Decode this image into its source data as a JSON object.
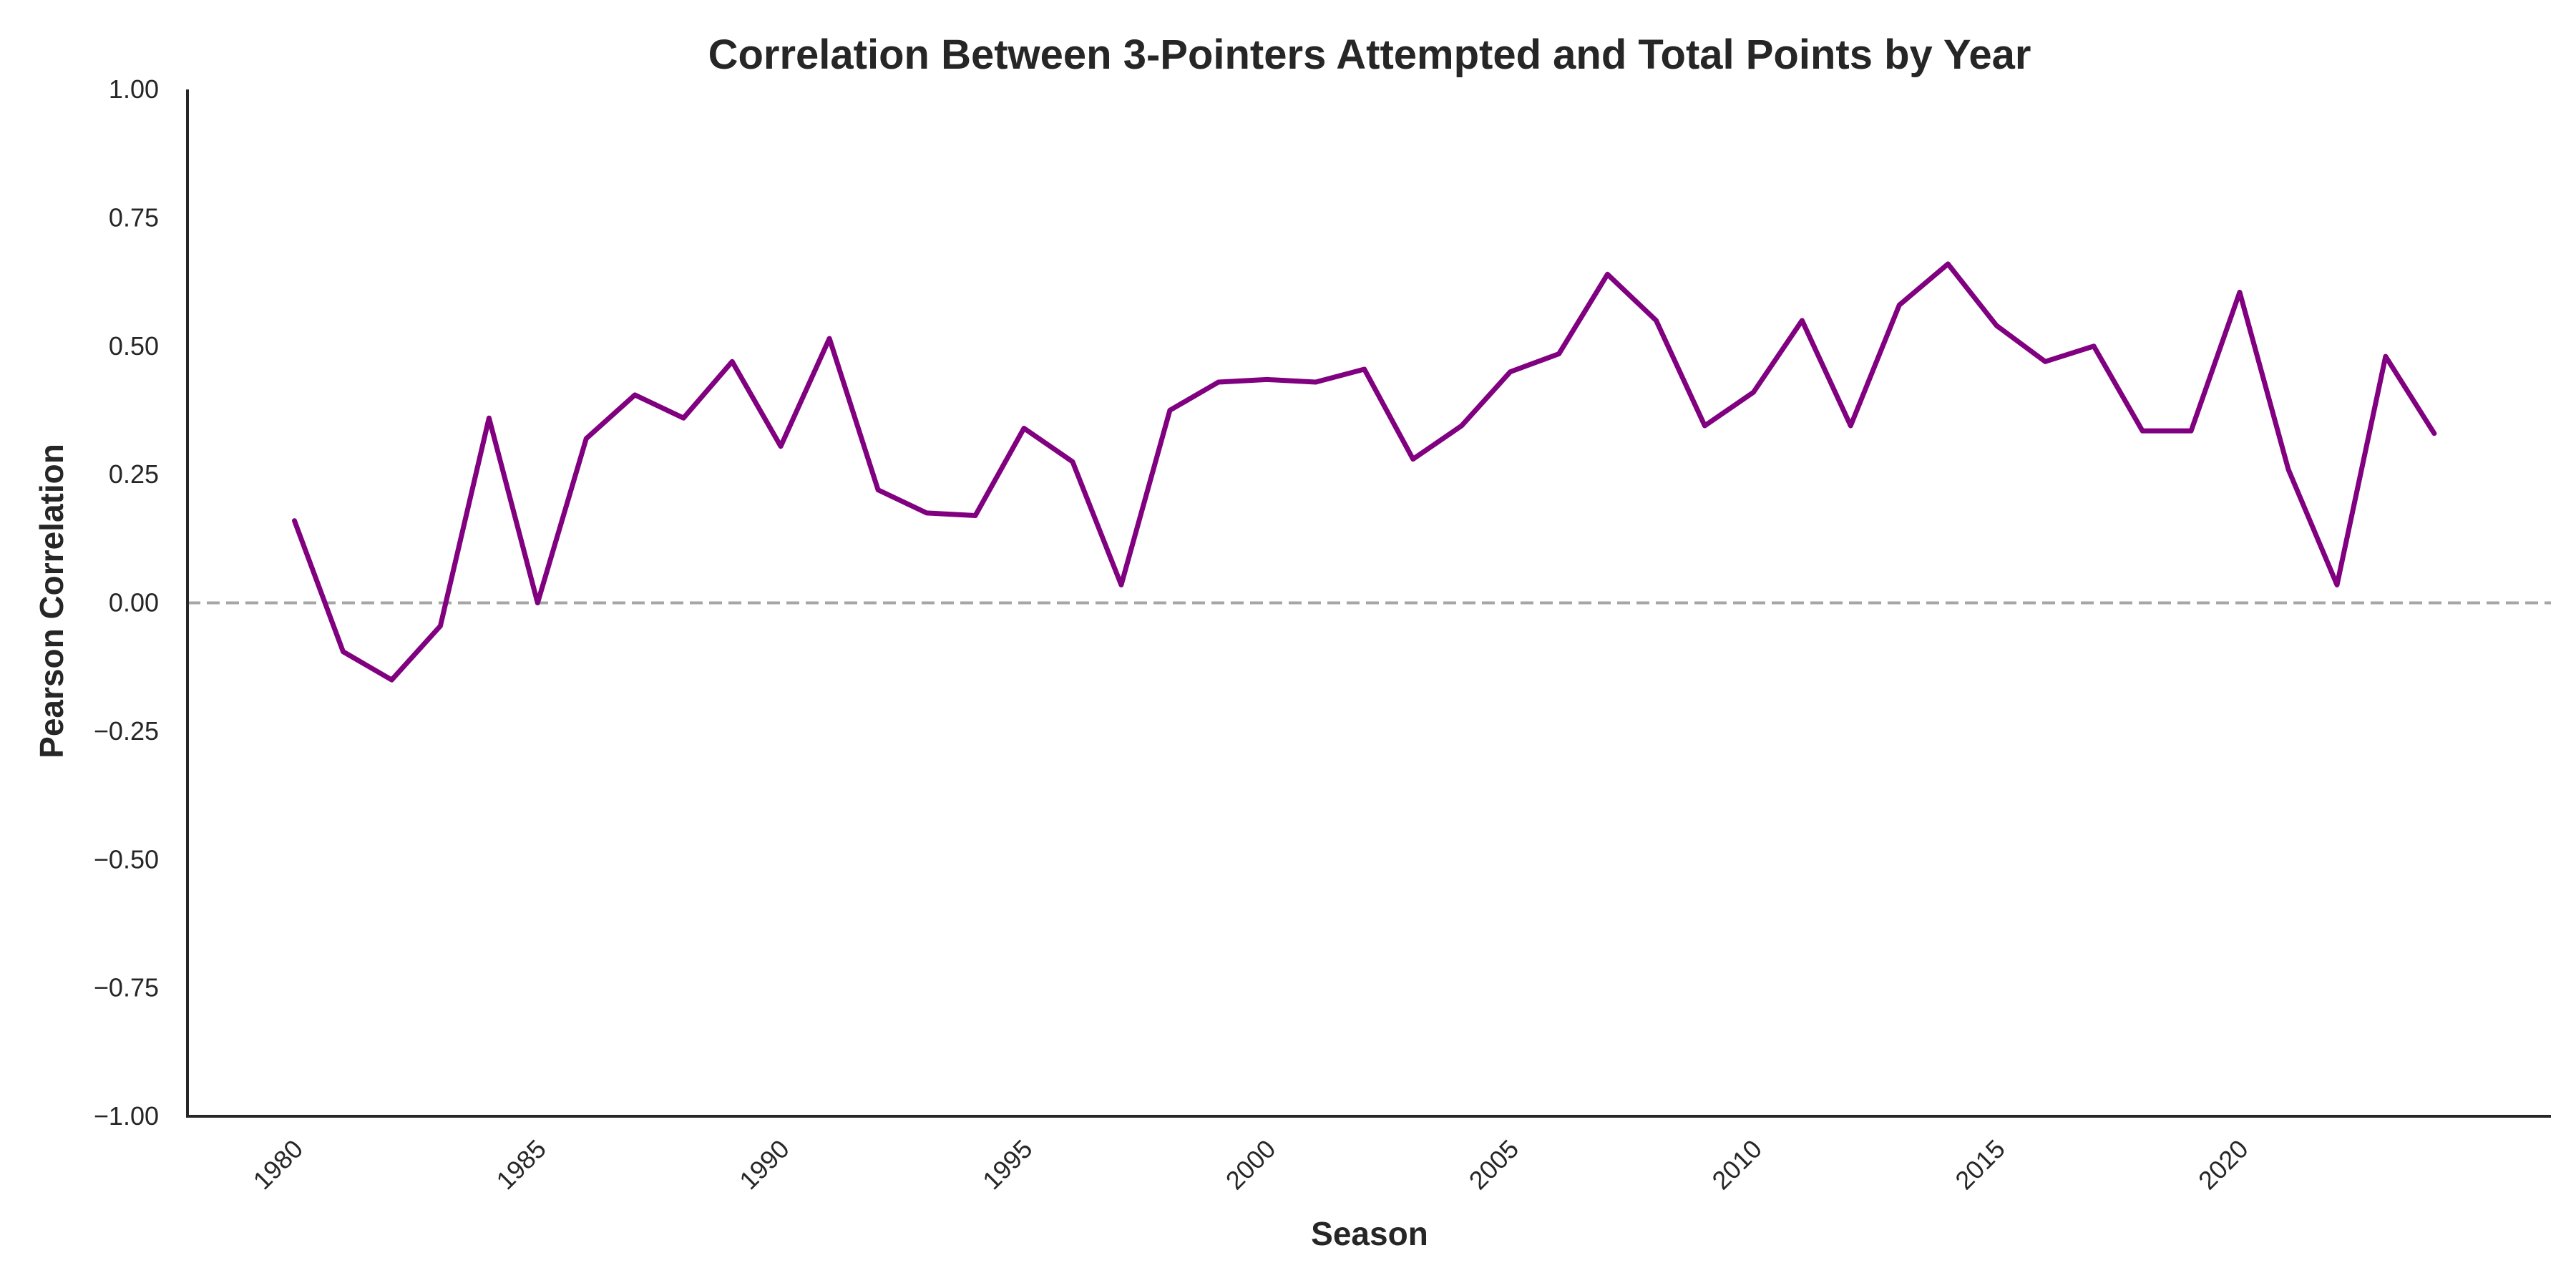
{
  "chart_data": {
    "type": "line",
    "title": "Correlation Between 3-Pointers Attempted and Total Points by Year",
    "xlabel": "Season",
    "ylabel": "Pearson Correlation",
    "xlim": [
      1977.8,
      2026.4
    ],
    "ylim": [
      -1.0,
      1.0
    ],
    "x_ticks": [
      1980,
      1985,
      1990,
      1995,
      2000,
      2005,
      2010,
      2015,
      2020
    ],
    "y_ticks": [
      {
        "value": -1.0,
        "label": "−1.00"
      },
      {
        "value": -0.75,
        "label": "−0.75"
      },
      {
        "value": -0.5,
        "label": "−0.50"
      },
      {
        "value": -0.25,
        "label": "−0.25"
      },
      {
        "value": 0.0,
        "label": "0.00"
      },
      {
        "value": 0.25,
        "label": "0.25"
      },
      {
        "value": 0.5,
        "label": "0.50"
      },
      {
        "value": 0.75,
        "label": "0.75"
      },
      {
        "value": 1.0,
        "label": "1.00"
      }
    ],
    "grid": false,
    "reference_line": {
      "y": 0.0,
      "style": "dashed",
      "color": "#a6a6a6"
    },
    "series": [
      {
        "color": "#800080",
        "x": [
          1980,
          1981,
          1982,
          1983,
          1984,
          1985,
          1986,
          1987,
          1988,
          1989,
          1990,
          1991,
          1992,
          1993,
          1994,
          1995,
          1996,
          1997,
          1998,
          1999,
          2000,
          2001,
          2002,
          2003,
          2004,
          2005,
          2006,
          2007,
          2008,
          2009,
          2010,
          2011,
          2012,
          2013,
          2014,
          2015,
          2016,
          2017,
          2018,
          2019,
          2020,
          2021,
          2022,
          2023,
          2024
        ],
        "values": [
          0.16,
          -0.095,
          -0.15,
          -0.045,
          0.36,
          0.0,
          0.32,
          0.405,
          0.36,
          0.47,
          0.305,
          0.515,
          0.22,
          0.175,
          0.17,
          0.34,
          0.275,
          0.035,
          0.375,
          0.43,
          0.435,
          0.43,
          0.455,
          0.28,
          0.345,
          0.45,
          0.485,
          0.64,
          0.55,
          0.345,
          0.41,
          0.55,
          0.345,
          0.58,
          0.66,
          0.54,
          0.47,
          0.5,
          0.335,
          0.335,
          0.605,
          0.26,
          0.035,
          0.48,
          0.33
        ]
      }
    ]
  }
}
